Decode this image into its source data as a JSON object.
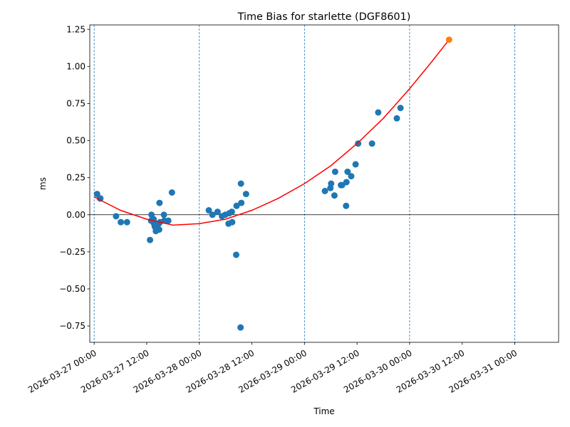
{
  "chart_data": {
    "type": "scatter",
    "title": "Time Bias for starlette (DGF8601)",
    "xlabel": "Time",
    "ylabel": "ms",
    "x_type": "datetime",
    "xlim": [
      "2026-03-26T23:00",
      "2026-03-31T10:00"
    ],
    "ylim": [
      -0.86,
      1.28
    ],
    "xticks": [
      "2026-03-27 00:00",
      "2026-03-27 12:00",
      "2026-03-28 00:00",
      "2026-03-28 12:00",
      "2026-03-29 00:00",
      "2026-03-29 12:00",
      "2026-03-30 00:00",
      "2026-03-30 12:00",
      "2026-03-31 00:00"
    ],
    "yticks": [
      "−0.75",
      "−0.50",
      "−0.25",
      "0.00",
      "0.25",
      "0.50",
      "0.75",
      "1.00",
      "1.25"
    ],
    "ytick_values": [
      -0.75,
      -0.5,
      -0.25,
      0.0,
      0.25,
      0.5,
      0.75,
      1.0,
      1.25
    ],
    "vlines": [
      "2026-03-27T00:00",
      "2026-03-28T00:00",
      "2026-03-29T00:00",
      "2026-03-30T00:00",
      "2026-03-31T00:00"
    ],
    "hline": 0,
    "grid": false,
    "legend": "none",
    "colors": {
      "points": "#1f77b4",
      "fit": "#ff0000",
      "highlight": "#ff7f0e",
      "vlines": "#1f77b4",
      "hline": "#000000"
    },
    "series": [
      {
        "kind": "points",
        "points": [
          [
            "2026-03-27T00:40",
            0.14
          ],
          [
            "2026-03-27T01:20",
            0.11
          ],
          [
            "2026-03-27T01:25",
            0.11
          ],
          [
            "2026-03-27T05:00",
            -0.01
          ],
          [
            "2026-03-27T06:05",
            -0.05
          ],
          [
            "2026-03-27T07:30",
            -0.05
          ],
          [
            "2026-03-27T12:45",
            -0.17
          ],
          [
            "2026-03-27T13:00",
            -0.04
          ],
          [
            "2026-03-27T13:05",
            0.0
          ],
          [
            "2026-03-27T13:35",
            -0.03
          ],
          [
            "2026-03-27T13:40",
            -0.06
          ],
          [
            "2026-03-27T13:50",
            -0.08
          ],
          [
            "2026-03-27T14:05",
            -0.11
          ],
          [
            "2026-03-27T14:45",
            -0.06
          ],
          [
            "2026-03-27T14:50",
            -0.1
          ],
          [
            "2026-03-27T14:55",
            0.08
          ],
          [
            "2026-03-27T15:00",
            -0.05
          ],
          [
            "2026-03-27T15:55",
            0.0
          ],
          [
            "2026-03-27T16:00",
            -0.04
          ],
          [
            "2026-03-27T16:55",
            -0.04
          ],
          [
            "2026-03-27T17:45",
            0.15
          ],
          [
            "2026-03-28T02:10",
            0.03
          ],
          [
            "2026-03-28T03:00",
            0.0
          ],
          [
            "2026-03-28T04:10",
            0.02
          ],
          [
            "2026-03-28T05:10",
            -0.01
          ],
          [
            "2026-03-28T05:55",
            0.0
          ],
          [
            "2026-03-28T06:40",
            -0.06
          ],
          [
            "2026-03-28T06:50",
            0.01
          ],
          [
            "2026-03-28T07:25",
            0.02
          ],
          [
            "2026-03-28T07:30",
            -0.05
          ],
          [
            "2026-03-28T08:25",
            -0.27
          ],
          [
            "2026-03-28T08:30",
            0.06
          ],
          [
            "2026-03-28T09:25",
            -0.76
          ],
          [
            "2026-03-28T09:30",
            0.21
          ],
          [
            "2026-03-28T09:35",
            0.08
          ],
          [
            "2026-03-28T10:40",
            0.14
          ],
          [
            "2026-03-29T04:40",
            0.16
          ],
          [
            "2026-03-29T05:55",
            0.18
          ],
          [
            "2026-03-29T06:05",
            0.21
          ],
          [
            "2026-03-29T06:50",
            0.13
          ],
          [
            "2026-03-29T07:00",
            0.29
          ],
          [
            "2026-03-29T08:20",
            0.2
          ],
          [
            "2026-03-29T08:35",
            0.2
          ],
          [
            "2026-03-29T09:30",
            0.06
          ],
          [
            "2026-03-29T09:35",
            0.22
          ],
          [
            "2026-03-29T09:50",
            0.29
          ],
          [
            "2026-03-29T10:40",
            0.26
          ],
          [
            "2026-03-29T11:40",
            0.34
          ],
          [
            "2026-03-29T12:15",
            0.48
          ],
          [
            "2026-03-29T15:25",
            0.48
          ],
          [
            "2026-03-29T16:50",
            0.69
          ],
          [
            "2026-03-29T21:05",
            0.65
          ],
          [
            "2026-03-29T21:55",
            0.72
          ]
        ]
      },
      {
        "kind": "fit",
        "points": [
          [
            "2026-03-27T00:00",
            0.12
          ],
          [
            "2026-03-27T06:00",
            0.03
          ],
          [
            "2026-03-27T12:00",
            -0.03
          ],
          [
            "2026-03-27T18:00",
            -0.07
          ],
          [
            "2026-03-28T00:00",
            -0.06
          ],
          [
            "2026-03-28T06:00",
            -0.03
          ],
          [
            "2026-03-28T12:00",
            0.03
          ],
          [
            "2026-03-28T18:00",
            0.11
          ],
          [
            "2026-03-29T00:00",
            0.21
          ],
          [
            "2026-03-29T06:00",
            0.33
          ],
          [
            "2026-03-29T12:00",
            0.48
          ],
          [
            "2026-03-29T18:00",
            0.65
          ],
          [
            "2026-03-30T00:00",
            0.85
          ],
          [
            "2026-03-30T05:00",
            1.03
          ],
          [
            "2026-03-30T09:00",
            1.18
          ]
        ]
      },
      {
        "kind": "highlight",
        "points": [
          [
            "2026-03-30T09:00",
            1.18
          ]
        ]
      }
    ]
  }
}
